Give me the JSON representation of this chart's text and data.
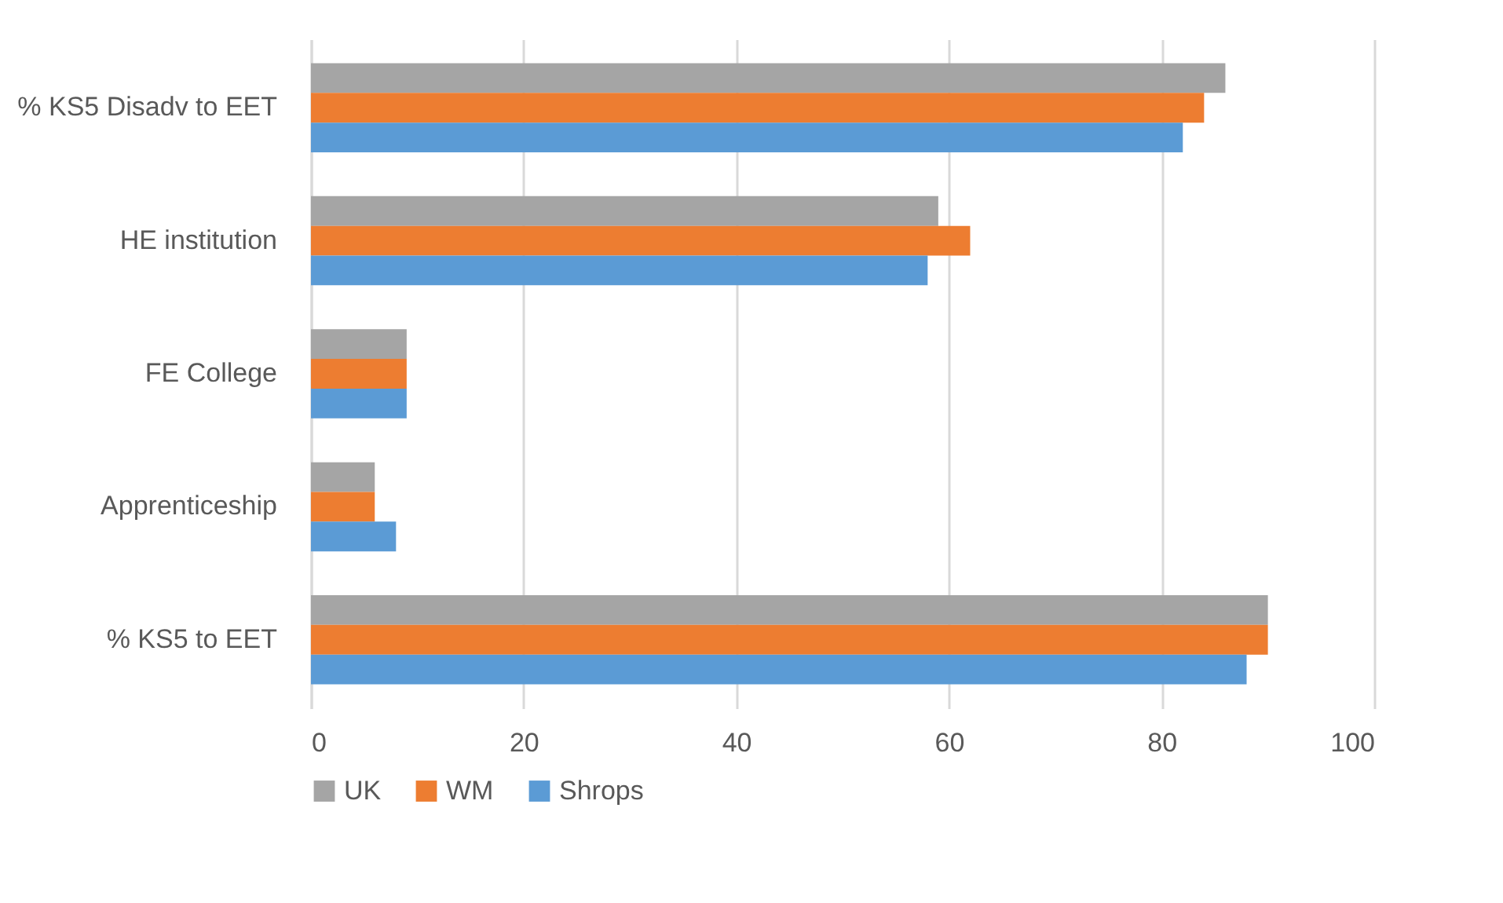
{
  "chart_data": {
    "type": "bar",
    "orientation": "horizontal",
    "categories": [
      "% KS5 Disadv to EET",
      "HE institution",
      "FE College",
      "Apprenticeship",
      "% KS5 to EET"
    ],
    "series": [
      {
        "name": "UK",
        "color": "#a5a5a5",
        "values": [
          86,
          59,
          9,
          6,
          90
        ]
      },
      {
        "name": "WM",
        "color": "#ed7d31",
        "values": [
          84,
          62,
          9,
          6,
          90
        ]
      },
      {
        "name": "Shrops",
        "color": "#5b9bd5",
        "values": [
          82,
          58,
          9,
          8,
          88
        ]
      }
    ],
    "xlim": [
      0,
      100
    ],
    "xticks": [
      0,
      20,
      40,
      60,
      80,
      100
    ],
    "grid": "x",
    "legend": "bottom"
  }
}
